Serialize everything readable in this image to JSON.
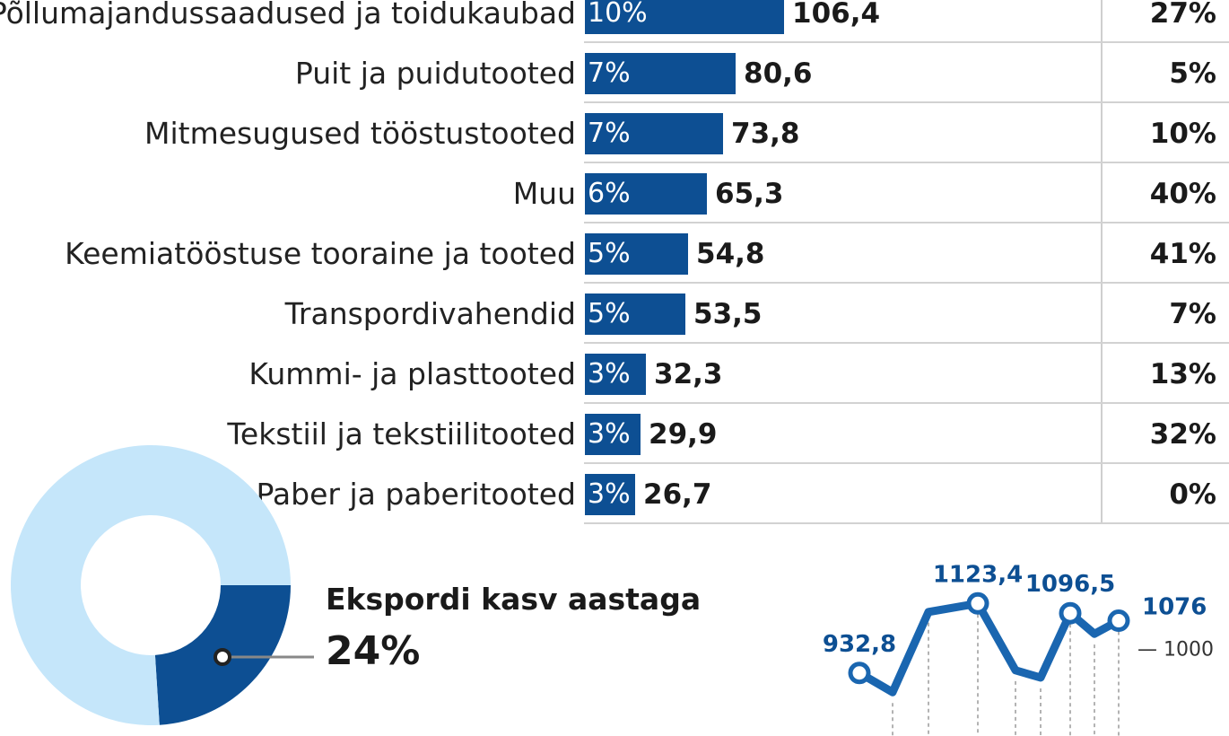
{
  "chart_data": [
    {
      "type": "bar",
      "categories": [
        "Põllumajandussaadused ja toidukaubad",
        "Puit ja puidutooted",
        "Mitmesugused tööstustooted",
        "Muu",
        "Keemiatööstuse tooraine ja tooted",
        "Transpordivahendid",
        "Kummi- ja plasttooted",
        "Tekstiil ja tekstiilitooted",
        "Paber ja paberitooted"
      ],
      "values": [
        106.4,
        80.6,
        73.8,
        65.3,
        54.8,
        53.5,
        32.3,
        29.9,
        26.7
      ],
      "value_labels": [
        "106,4",
        "80,6",
        "73,8",
        "65,3",
        "54,8",
        "53,5",
        "32,3",
        "29,9",
        "26,7"
      ],
      "share_labels": [
        "10%",
        "7%",
        "7%",
        "6%",
        "5%",
        "5%",
        "3%",
        "3%",
        "3%"
      ],
      "growth_labels": [
        "27%",
        "5%",
        "10%",
        "40%",
        "41%",
        "7%",
        "13%",
        "32%",
        "0%"
      ],
      "colors": {
        "bar": "#0d4f93",
        "bar_text": "#ffffff"
      }
    },
    {
      "type": "pie",
      "values": [
        24,
        76
      ],
      "colors": [
        "#0d4f93",
        "#c5e6fa"
      ],
      "title": "Ekspordi kasv aastaga",
      "highlight_label": "24%"
    },
    {
      "type": "line",
      "points": [
        {
          "label": "932,8",
          "value": 932.8
        },
        {
          "label": "",
          "value": 880
        },
        {
          "label": "",
          "value": 1100
        },
        {
          "label": "1123,4",
          "value": 1123.4
        },
        {
          "label": "",
          "value": 940
        },
        {
          "label": "",
          "value": 920
        },
        {
          "label": "1096,5",
          "value": 1096.5
        },
        {
          "label": "",
          "value": 1040
        },
        {
          "label": "1076",
          "value": 1076
        }
      ],
      "yticks": [
        {
          "value": 1000,
          "label": "— 1000"
        }
      ],
      "color": "#1a66b0"
    }
  ]
}
